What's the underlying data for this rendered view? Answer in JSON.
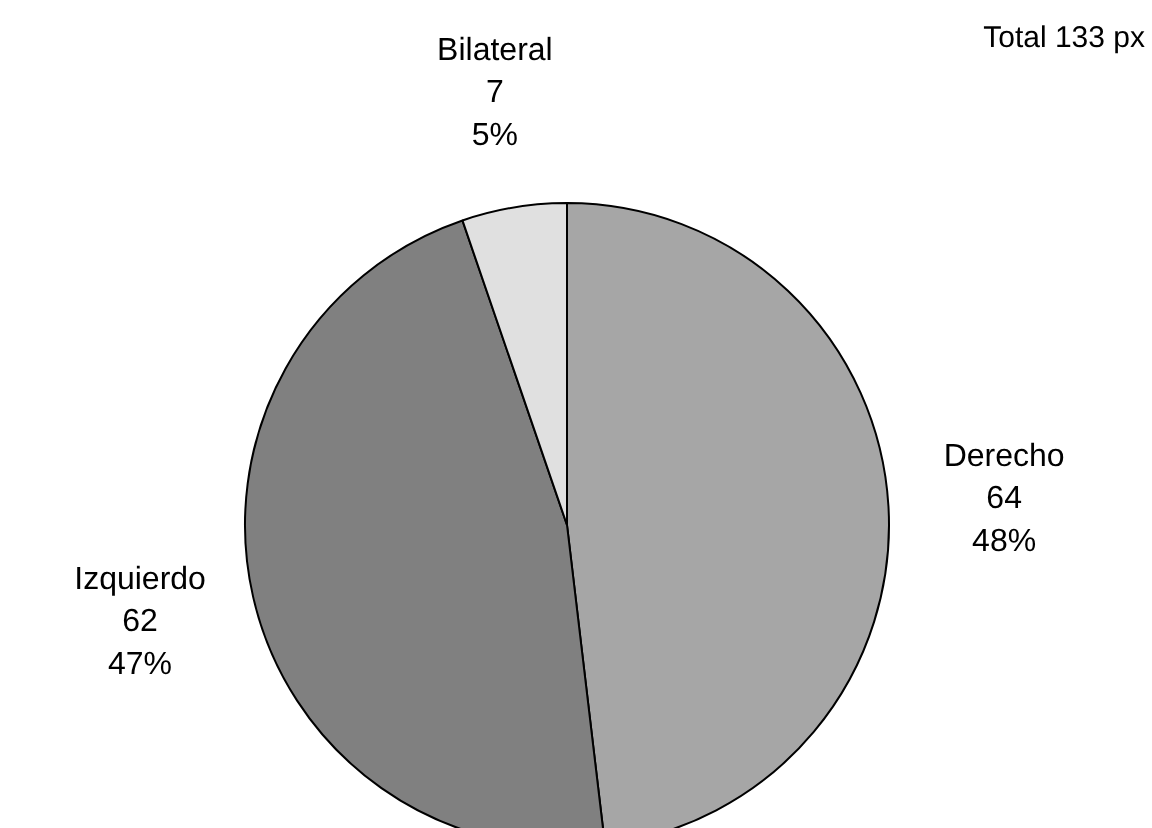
{
  "chart_data": {
    "type": "pie",
    "categories": [
      "Derecho",
      "Izquierdo",
      "Bilateral"
    ],
    "values": [
      64,
      62,
      7
    ],
    "colors": [
      "#a6a6a6",
      "#808080",
      "#e0e0e0"
    ],
    "value_labels": [
      "64\n48%",
      "62\n47%",
      "7\n5%"
    ],
    "annotations": [
      "Total 133 px"
    ]
  }
}
